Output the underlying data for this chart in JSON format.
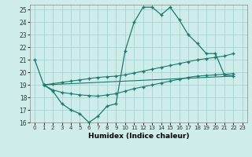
{
  "xlabel": "Humidex (Indice chaleur)",
  "bg_color": "#ceecea",
  "grid_color": "#a8d4d0",
  "line_color": "#1a7a6e",
  "xlim": [
    -0.5,
    23.5
  ],
  "ylim": [
    16,
    25.4
  ],
  "xticks": [
    0,
    1,
    2,
    3,
    4,
    5,
    6,
    7,
    8,
    9,
    10,
    11,
    12,
    13,
    14,
    15,
    16,
    17,
    18,
    19,
    20,
    21,
    22,
    23
  ],
  "yticks": [
    16,
    17,
    18,
    19,
    20,
    21,
    22,
    23,
    24,
    25
  ],
  "line1_x": [
    0,
    1,
    2,
    3,
    4,
    5,
    6,
    7,
    8,
    9,
    10,
    11,
    12,
    13,
    14,
    15,
    16,
    17,
    18,
    19,
    20,
    21,
    22
  ],
  "line1_y": [
    21,
    19,
    18.5,
    17.5,
    17.0,
    16.7,
    16.0,
    16.5,
    17.3,
    17.5,
    21.7,
    24.0,
    25.2,
    25.2,
    24.6,
    25.2,
    24.2,
    23.0,
    22.3,
    21.5,
    21.5,
    19.8,
    19.7
  ],
  "line2_x": [
    1,
    2,
    3,
    4,
    5,
    6,
    7,
    8,
    9,
    10,
    11,
    12,
    13,
    14,
    15,
    16,
    17,
    18,
    19,
    20,
    21,
    22
  ],
  "line2_y": [
    19.0,
    19.1,
    19.2,
    19.3,
    19.4,
    19.5,
    19.6,
    19.65,
    19.7,
    19.8,
    19.95,
    20.1,
    20.25,
    20.4,
    20.55,
    20.7,
    20.85,
    21.0,
    21.1,
    21.2,
    21.3,
    21.5
  ],
  "line3_x": [
    1,
    22
  ],
  "line3_y": [
    19.0,
    19.7
  ],
  "line4_x": [
    1,
    2,
    3,
    4,
    5,
    6,
    7,
    8,
    9,
    10,
    11,
    12,
    13,
    14,
    15,
    16,
    17,
    18,
    19,
    20,
    21,
    22
  ],
  "line4_y": [
    19.0,
    18.6,
    18.4,
    18.3,
    18.2,
    18.15,
    18.1,
    18.2,
    18.3,
    18.5,
    18.7,
    18.85,
    19.0,
    19.15,
    19.3,
    19.45,
    19.6,
    19.7,
    19.75,
    19.8,
    19.85,
    19.9
  ]
}
